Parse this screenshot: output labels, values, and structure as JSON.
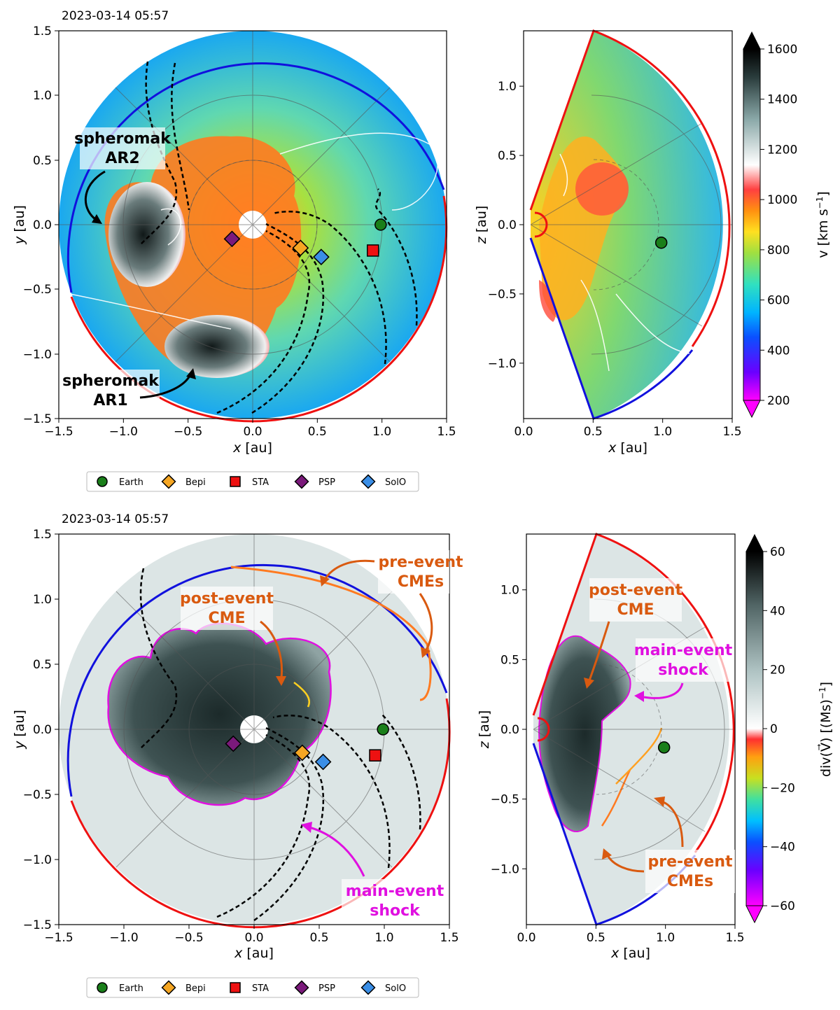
{
  "figure": {
    "colors": {
      "earth": "#1a7f1a",
      "bepi": "#f5a623",
      "sta": "#ee1111",
      "psp": "#7b1a7b",
      "solo": "#3a8ee6",
      "boundary_red": "#ee1111",
      "boundary_blue": "#1111dd",
      "annot_orange": "#d95a10",
      "annot_magenta": "#e010e0"
    },
    "legend": [
      {
        "label": "Earth",
        "marker": "circle",
        "color": "#1a7f1a"
      },
      {
        "label": "Bepi",
        "marker": "diamond",
        "color": "#f5a623"
      },
      {
        "label": "STA",
        "marker": "square",
        "color": "#ee1111"
      },
      {
        "label": "PSP",
        "marker": "diamond",
        "color": "#7b1a7b"
      },
      {
        "label": "SolO",
        "marker": "diamond",
        "color": "#3a8ee6"
      }
    ]
  },
  "panels": {
    "top_left": {
      "date": "2023-03-14 05:57",
      "xlabel_sym": "x",
      "xlabel_unit": " [au]",
      "ylabel_sym": "y",
      "ylabel_unit": " [au]",
      "xticks": [
        "−1.5",
        "−1.0",
        "−0.5",
        "0.0",
        "0.5",
        "1.0",
        "1.5"
      ],
      "yticks": [
        "1.5",
        "1.0",
        "0.5",
        "0.0",
        "−0.5",
        "−1.0",
        "−1.5"
      ],
      "annotations": {
        "ar2_line1": "spheromak",
        "ar2_line2": "AR2",
        "ar1_line1": "spheromak",
        "ar1_line2": "AR1"
      }
    },
    "top_right": {
      "xlabel_sym": "x",
      "xlabel_unit": " [au]",
      "ylabel_sym": "z",
      "ylabel_unit": " [au]",
      "xticks": [
        "0.0",
        "0.5",
        "1.0",
        "1.5"
      ],
      "yticks": [
        "1.0",
        "0.5",
        "0.0",
        "−0.5",
        "−1.0"
      ],
      "colorbar": {
        "ticks": [
          "1600",
          "1400",
          "1200",
          "1000",
          "800",
          "600",
          "400",
          "200"
        ],
        "label": "v  [km s",
        "label_exp": "−1",
        "label_close": "]"
      }
    },
    "bottom_left": {
      "date": "2023-03-14 05:57",
      "xlabel_sym": "x",
      "xlabel_unit": " [au]",
      "ylabel_sym": "y",
      "ylabel_unit": " [au]",
      "xticks": [
        "−1.5",
        "−1.0",
        "−0.5",
        "0.0",
        "0.5",
        "1.0",
        "1.5"
      ],
      "yticks": [
        "1.5",
        "1.0",
        "0.5",
        "0.0",
        "−0.5",
        "−1.0",
        "−1.5"
      ],
      "annotations": {
        "pre_line1": "pre-event",
        "pre_line2": "CMEs",
        "post_line1": "post-event",
        "post_line2": "CME",
        "main_line1": "main-event",
        "main_line2": "shock"
      }
    },
    "bottom_right": {
      "xlabel_sym": "x",
      "xlabel_unit": " [au]",
      "ylabel_sym": "z",
      "ylabel_unit": " [au]",
      "xticks": [
        "0.0",
        "0.5",
        "1.0",
        "1.5"
      ],
      "yticks": [
        "1.0",
        "0.5",
        "0.0",
        "−0.5",
        "−1.0"
      ],
      "colorbar": {
        "ticks": [
          "60",
          "40",
          "20",
          "0",
          "−20",
          "−40",
          "−60"
        ],
        "label": "div(V⃗)  [(Ms)",
        "label_exp": "−1",
        "label_close": "]"
      },
      "annotations": {
        "post_line1": "post-event",
        "post_line2": "CME",
        "main_line1": "main-event",
        "main_line2": "shock",
        "pre_line1": "pre-event",
        "pre_line2": "CMEs"
      }
    }
  },
  "chart_data": [
    {
      "type": "heatmap",
      "title": "2023-03-14 05:57",
      "xlabel": "x [au]",
      "ylabel": "y [au]",
      "xlim": [
        -1.5,
        1.5
      ],
      "ylim": [
        -1.5,
        1.5
      ],
      "quantity": "v [km s^-1]",
      "points": [
        {
          "name": "Earth",
          "x": 0.99,
          "y": 0.0
        },
        {
          "name": "Bepi",
          "x": 0.37,
          "y": -0.18
        },
        {
          "name": "STA",
          "x": 0.93,
          "y": -0.2
        },
        {
          "name": "PSP",
          "x": -0.16,
          "y": -0.11
        },
        {
          "name": "SolO",
          "x": 0.53,
          "y": -0.25
        }
      ]
    },
    {
      "type": "heatmap",
      "xlabel": "x [au]",
      "ylabel": "z [au]",
      "xlim": [
        0.0,
        1.5
      ],
      "ylim": [
        -1.4,
        1.4
      ],
      "colorbar_range": [
        200,
        1600
      ],
      "points": [
        {
          "name": "Earth",
          "x": 0.99,
          "y": -0.13
        }
      ]
    },
    {
      "type": "heatmap",
      "title": "2023-03-14 05:57",
      "xlabel": "x [au]",
      "ylabel": "y [au]",
      "xlim": [
        -1.5,
        1.5
      ],
      "ylim": [
        -1.5,
        1.5
      ],
      "quantity": "div(V) [(Ms)^-1]",
      "points": [
        {
          "name": "Earth",
          "x": 0.99,
          "y": 0.0
        },
        {
          "name": "Bepi",
          "x": 0.37,
          "y": -0.18
        },
        {
          "name": "STA",
          "x": 0.93,
          "y": -0.2
        },
        {
          "name": "PSP",
          "x": -0.16,
          "y": -0.11
        },
        {
          "name": "SolO",
          "x": 0.53,
          "y": -0.25
        }
      ]
    },
    {
      "type": "heatmap",
      "xlabel": "x [au]",
      "ylabel": "z [au]",
      "xlim": [
        0.0,
        1.5
      ],
      "ylim": [
        -1.4,
        1.4
      ],
      "colorbar_range": [
        -60,
        60
      ],
      "points": [
        {
          "name": "Earth",
          "x": 0.99,
          "y": -0.13
        }
      ]
    }
  ]
}
